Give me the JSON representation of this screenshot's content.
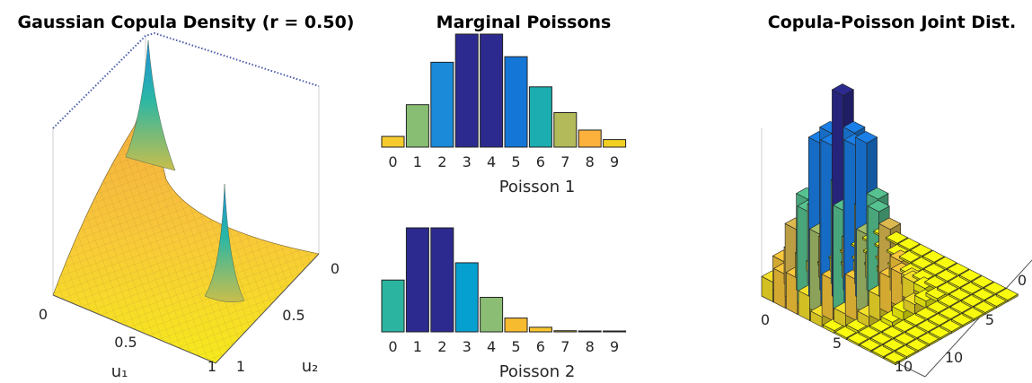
{
  "chart_data": [
    {
      "type": "surface",
      "title": "Gaussian Copula Density (r = 0.50)",
      "xlabel": "u₁",
      "ylabel": "u₂",
      "x_ticks": [
        "0",
        "0.5",
        "1"
      ],
      "y_ticks": [
        "0",
        "0.5",
        "1"
      ],
      "colormap": "parula",
      "correlation": 0.5
    },
    {
      "type": "bar",
      "title": "Marginal Poissons",
      "xlabel": "Poisson 1",
      "categories": [
        "0",
        "1",
        "2",
        "3",
        "4",
        "5",
        "6",
        "7",
        "8",
        "9"
      ],
      "values": [
        0.027,
        0.107,
        0.214,
        0.285,
        0.285,
        0.228,
        0.152,
        0.087,
        0.043,
        0.019
      ],
      "ylim": [
        0,
        0.285
      ],
      "colors": [
        "#F6CB2D",
        "#88BE73",
        "#1A8AD9",
        "#2C2A8F",
        "#2C2A8F",
        "#1476D6",
        "#1BADB0",
        "#B3BA5A",
        "#FBB13C",
        "#F2D124"
      ]
    },
    {
      "type": "bar",
      "xlabel": "Poisson 2",
      "categories": [
        "0",
        "1",
        "2",
        "3",
        "4",
        "5",
        "6",
        "7",
        "8",
        "9"
      ],
      "values": [
        0.135,
        0.271,
        0.271,
        0.18,
        0.09,
        0.036,
        0.012,
        0.003,
        0.001,
        0.0002
      ],
      "ylim": [
        0,
        0.271
      ],
      "colors": [
        "#2BB5A0",
        "#2C2A8F",
        "#2C2A8F",
        "#06A0D0",
        "#8CBD74",
        "#F7BB2F",
        "#FAC52F",
        "#F7D82A",
        "#F9E320",
        "#F9EE18"
      ]
    },
    {
      "type": "bar3d",
      "title": "Copula-Poisson Joint Dist.",
      "x_ticks": [
        "0",
        "5",
        "10"
      ],
      "y_ticks": [
        "0",
        "5",
        "10"
      ],
      "colormap": "parula"
    }
  ]
}
